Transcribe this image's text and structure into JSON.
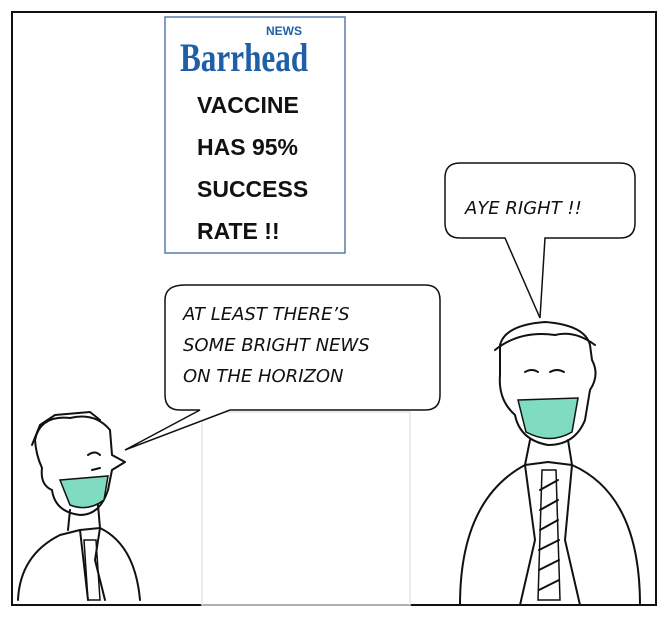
{
  "newspaper": {
    "masthead": "Barrhead",
    "masthead_tag": "NEWS",
    "headline": [
      "VACCINE",
      "HAS 95%",
      "SUCCESS",
      "RATE !!"
    ]
  },
  "speech": [
    {
      "lines": [
        "AT LEAST THERE’S",
        "SOME BRIGHT NEWS",
        "ON THE HORIZON"
      ]
    },
    {
      "lines": [
        "AYE RIGHT !!"
      ]
    }
  ]
}
